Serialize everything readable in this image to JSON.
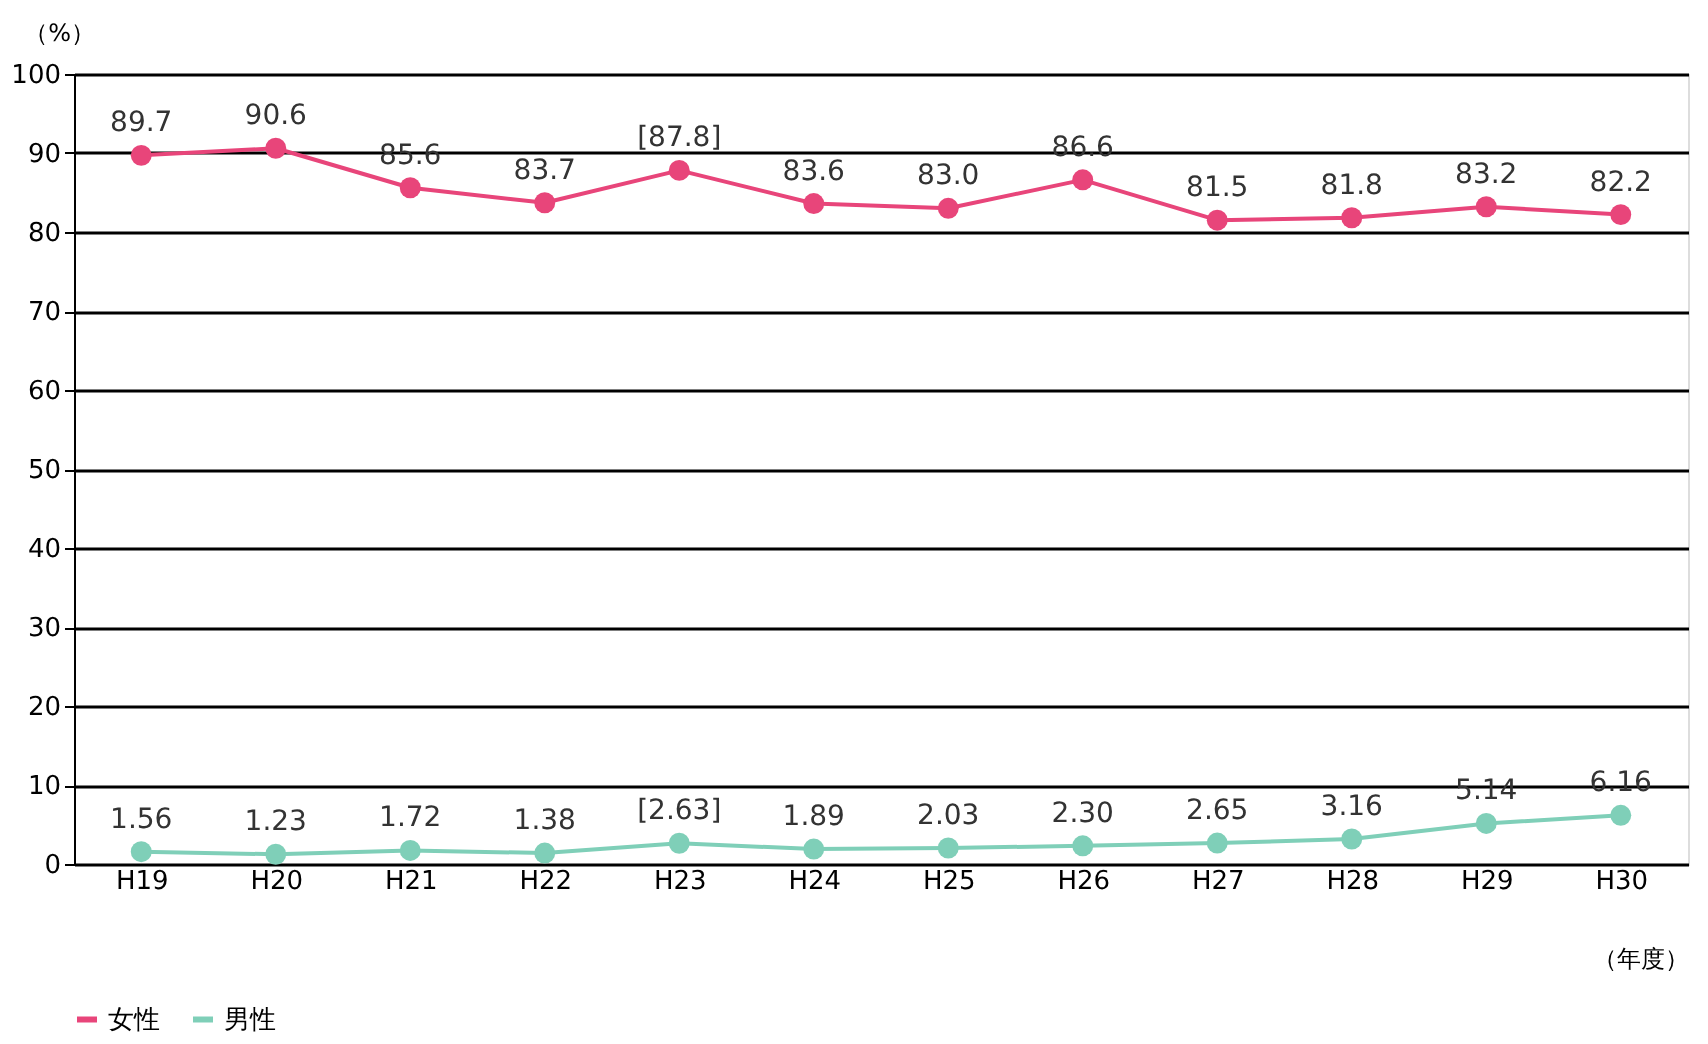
{
  "chart_data": {
    "type": "line",
    "ylabel": "（%）",
    "xlabel": "（年度）",
    "categories": [
      "H19",
      "H20",
      "H21",
      "H22",
      "H23",
      "H24",
      "H25",
      "H26",
      "H27",
      "H28",
      "H29",
      "H30"
    ],
    "series": [
      {
        "name": "女性",
        "color": "#e8457a",
        "values": [
          89.7,
          90.6,
          85.6,
          83.7,
          87.8,
          83.6,
          83.0,
          86.6,
          81.5,
          81.8,
          83.2,
          82.2
        ],
        "value_labels": [
          "89.7",
          "90.6",
          "85.6",
          "83.7",
          "[87.8]",
          "83.6",
          "83.0",
          "86.6",
          "81.5",
          "81.8",
          "83.2",
          "82.2"
        ]
      },
      {
        "name": "男性",
        "color": "#7fcfb8",
        "values": [
          1.56,
          1.23,
          1.72,
          1.38,
          2.63,
          1.89,
          2.03,
          2.3,
          2.65,
          3.16,
          5.14,
          6.16
        ],
        "value_labels": [
          "1.56",
          "1.23",
          "1.72",
          "1.38",
          "[2.63]",
          "1.89",
          "2.03",
          "2.30",
          "2.65",
          "3.16",
          "5.14",
          "6.16"
        ]
      }
    ],
    "ylim": [
      0,
      100
    ],
    "yticks": [
      0,
      10,
      20,
      30,
      40,
      50,
      60,
      70,
      80,
      90,
      100
    ],
    "grid": "y",
    "legend": "bottom",
    "marker": "circle",
    "line_style": "solid"
  }
}
